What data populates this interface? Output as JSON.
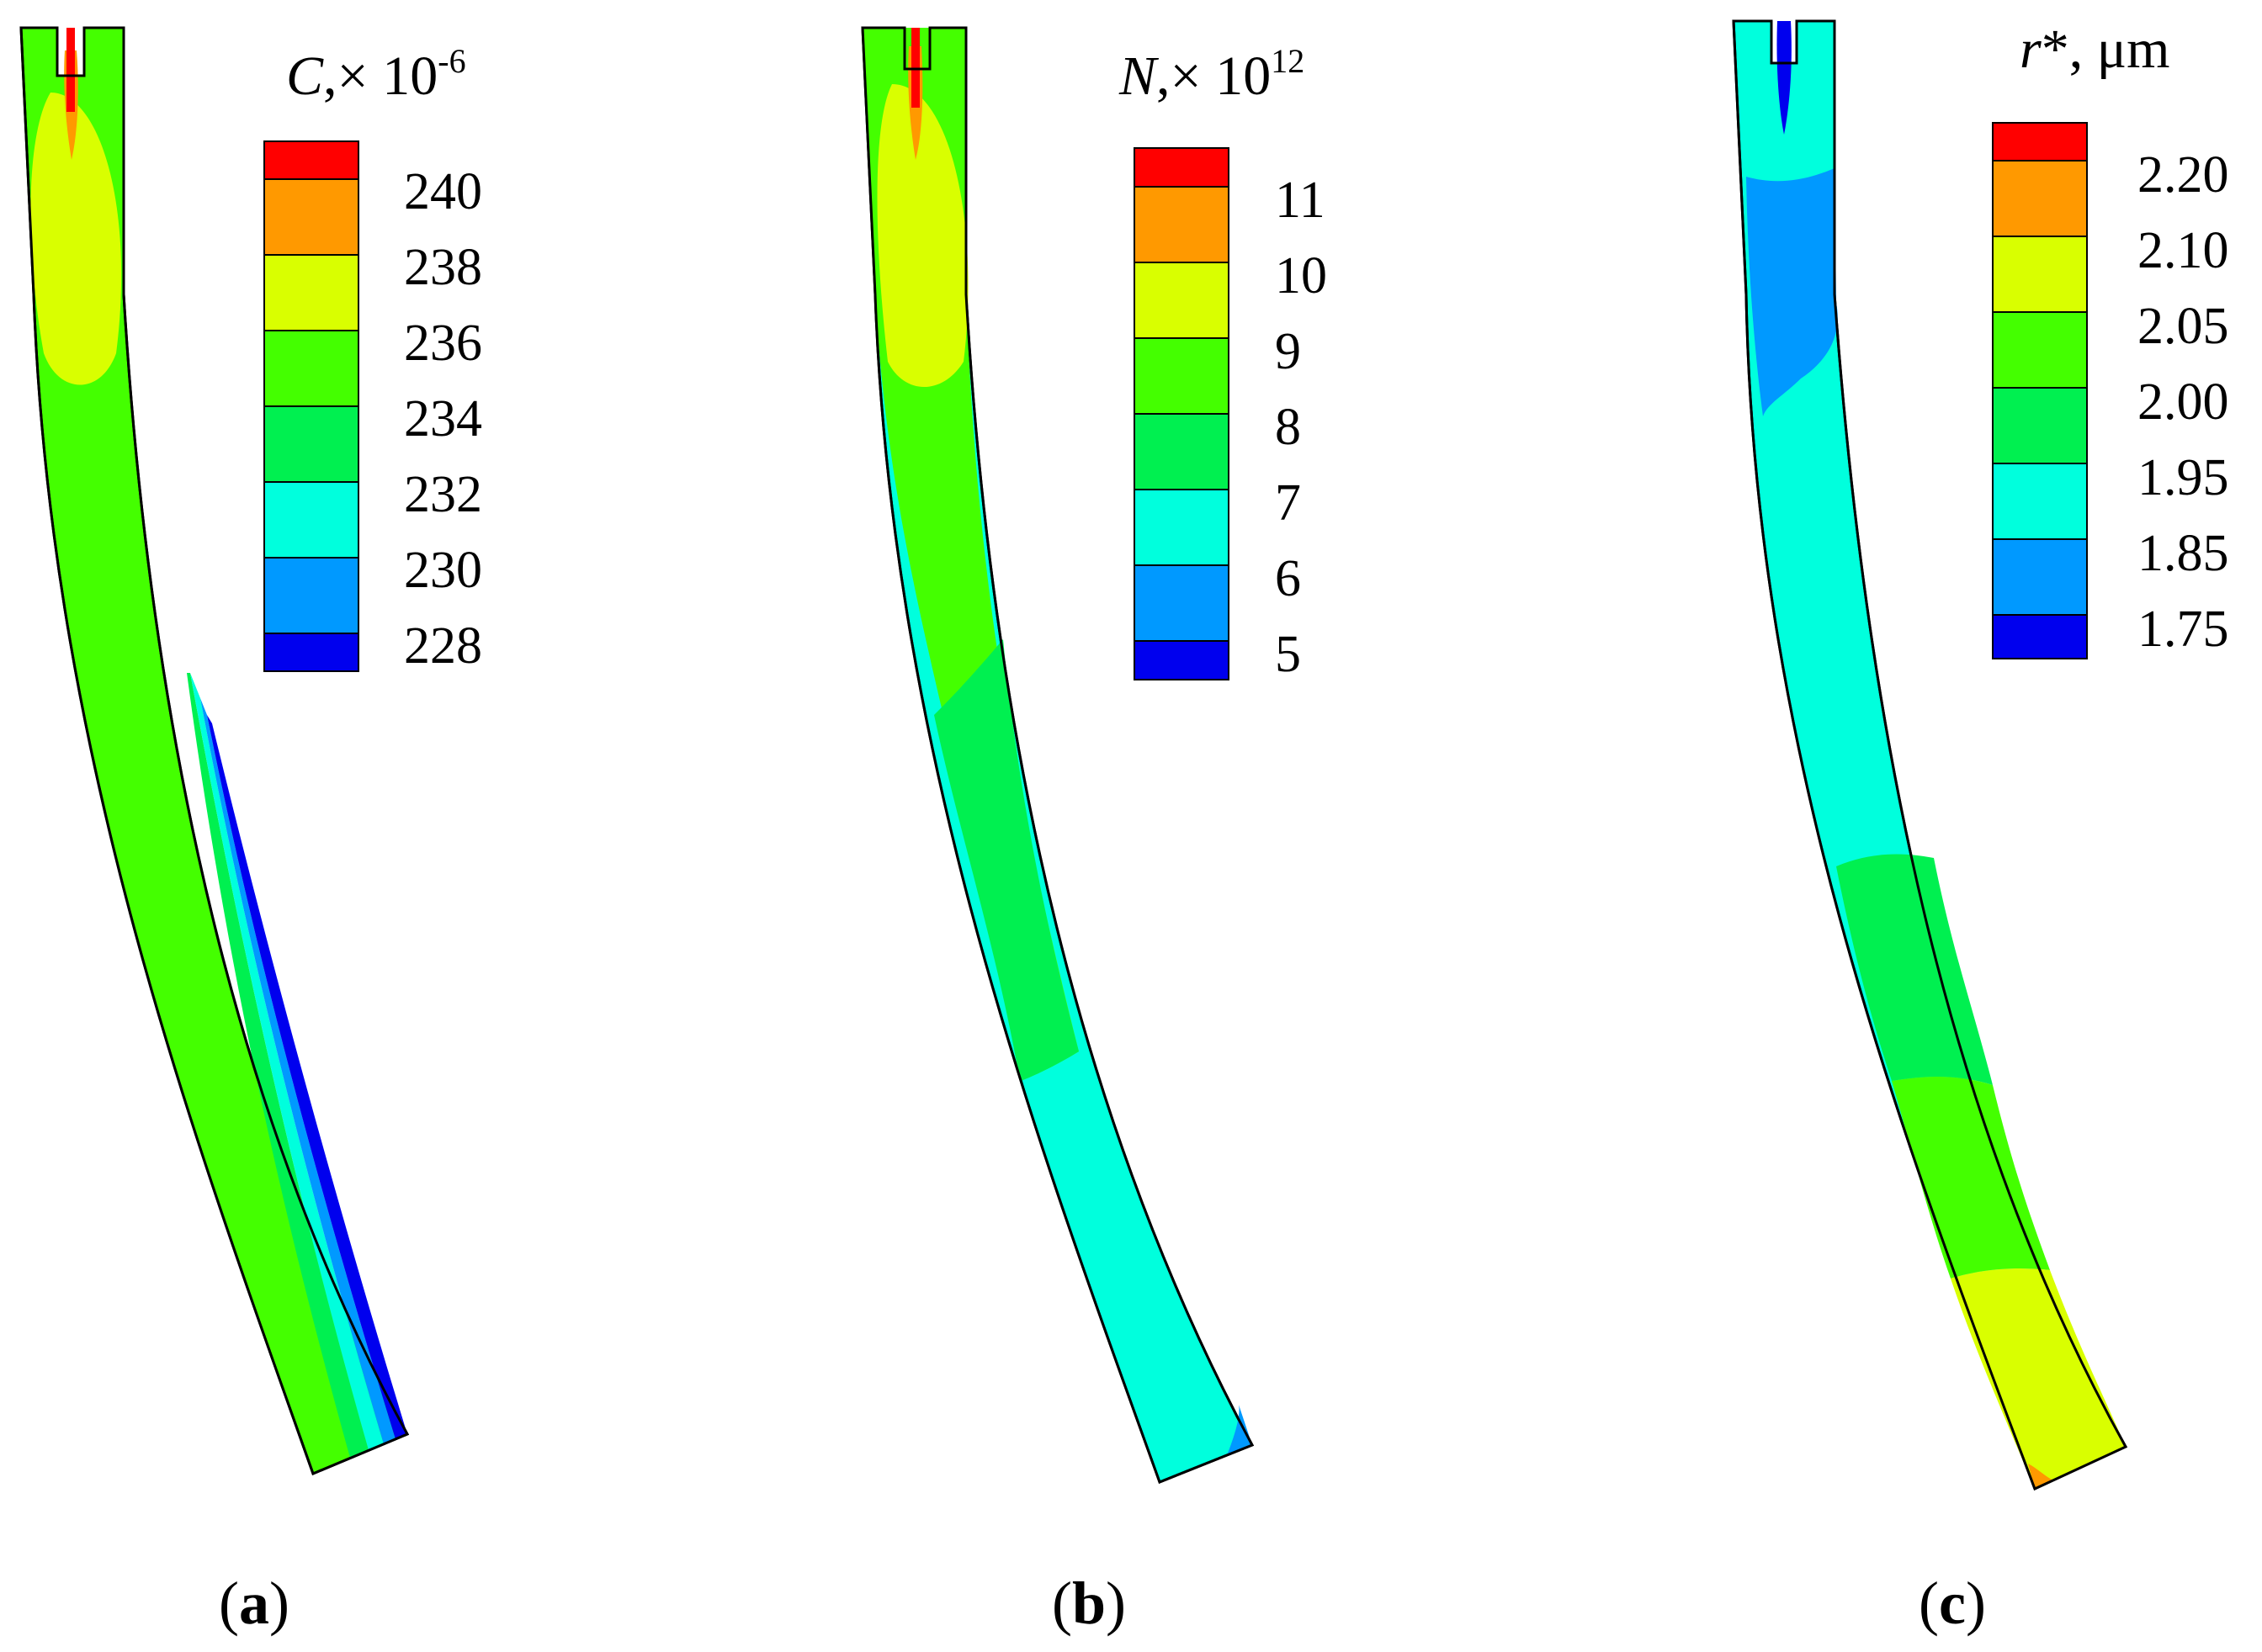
{
  "panels": [
    {
      "caption": "(a)",
      "caption_letter": "a",
      "legend_title_symbol": "C",
      "legend_title_rest": ",× 10",
      "legend_title_exp": "-6",
      "legend_tick_labels": [
        "240",
        "238",
        "236",
        "234",
        "232",
        "230",
        "228"
      ],
      "legend_colors": [
        "#ff0000",
        "#ff9900",
        "#d9ff00",
        "#44ff00",
        "#00f050",
        "#00ffdd",
        "#0099ff",
        "#0000ee"
      ]
    },
    {
      "caption": "(b)",
      "caption_letter": "b",
      "legend_title_symbol": "N",
      "legend_title_rest": ",× 10",
      "legend_title_exp": "12",
      "legend_tick_labels": [
        "11",
        "10",
        "9",
        "8",
        "7",
        "6",
        "5"
      ],
      "legend_colors": [
        "#ff0000",
        "#ff9900",
        "#d9ff00",
        "#44ff00",
        "#00f050",
        "#00ffdd",
        "#0099ff",
        "#0000ee"
      ]
    },
    {
      "caption": "(c)",
      "caption_letter": "c",
      "legend_title_symbol": "r",
      "legend_title_rest": "*, μm",
      "legend_title_exp": "",
      "legend_tick_labels": [
        "2.20",
        "2.10",
        "2.05",
        "2.00",
        "1.95",
        "1.85",
        "1.75"
      ],
      "legend_colors": [
        "#ff0000",
        "#ff9900",
        "#d9ff00",
        "#44ff00",
        "#00f050",
        "#00ffdd",
        "#0099ff",
        "#0000ee"
      ]
    }
  ]
}
